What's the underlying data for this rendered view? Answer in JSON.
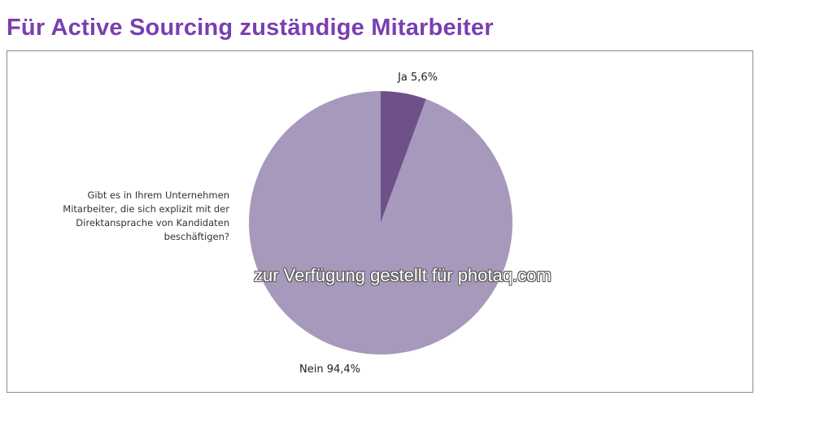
{
  "page": {
    "title": "Für Active Sourcing zuständige Mitarbeiter",
    "watermark": "zur Verfügung gestellt für photaq.com"
  },
  "chart_data": {
    "type": "pie",
    "question": "Gibt es in Ihrem Unternehmen Mitarbeiter, die sich explizit mit der Direktansprache von Kandidaten beschäftigen?",
    "slices": [
      {
        "label": "Ja 5,6%",
        "value": 5.6,
        "color": "#6f5189"
      },
      {
        "label": "Nein 94,4%",
        "value": 94.4,
        "color": "#a799bb"
      }
    ]
  },
  "colors": {
    "title": "#7a3fb0",
    "frame_border": "#8c8c8c"
  }
}
